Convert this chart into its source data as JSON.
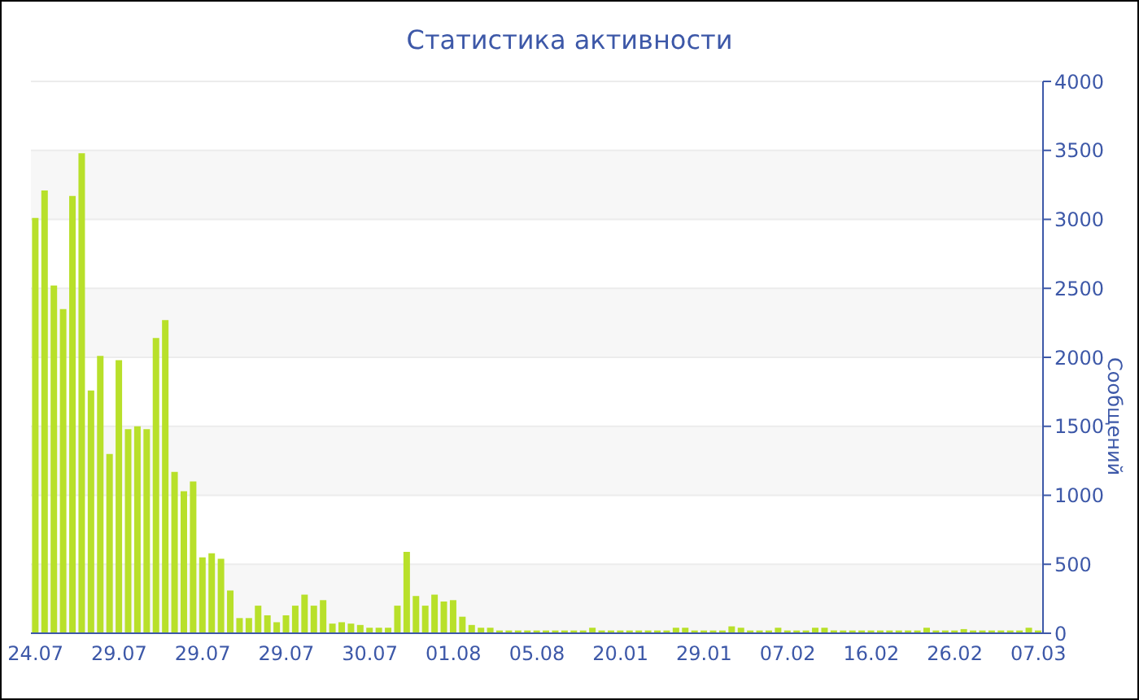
{
  "chart_data": {
    "type": "bar",
    "title": "Статистика активности",
    "ylabel": "Сообщений",
    "categories": [
      "24.07",
      null,
      null,
      null,
      null,
      null,
      null,
      null,
      null,
      "29.07",
      null,
      null,
      null,
      null,
      null,
      null,
      null,
      null,
      "29.07",
      null,
      null,
      null,
      null,
      null,
      null,
      null,
      null,
      "29.07",
      null,
      null,
      null,
      null,
      null,
      null,
      null,
      null,
      "30.07",
      null,
      null,
      null,
      null,
      null,
      null,
      null,
      null,
      "01.08",
      null,
      null,
      null,
      null,
      null,
      null,
      null,
      null,
      "05.08",
      null,
      null,
      null,
      null,
      null,
      null,
      null,
      null,
      "20.01",
      null,
      null,
      null,
      null,
      null,
      null,
      null,
      null,
      "29.01",
      null,
      null,
      null,
      null,
      null,
      null,
      null,
      null,
      "07.02",
      null,
      null,
      null,
      null,
      null,
      null,
      null,
      null,
      "16.02",
      null,
      null,
      null,
      null,
      null,
      null,
      null,
      null,
      "26.02",
      null,
      null,
      null,
      null,
      null,
      null,
      null,
      null,
      "07.03"
    ],
    "values": [
      3010,
      3210,
      2520,
      2350,
      3170,
      3480,
      1760,
      2010,
      1300,
      1980,
      1480,
      1500,
      1480,
      2140,
      2270,
      1170,
      1030,
      1100,
      550,
      580,
      540,
      310,
      110,
      110,
      200,
      130,
      80,
      130,
      200,
      280,
      200,
      240,
      70,
      80,
      70,
      60,
      40,
      40,
      40,
      200,
      590,
      270,
      200,
      280,
      230,
      240,
      120,
      60,
      40,
      40,
      20,
      20,
      20,
      20,
      20,
      20,
      20,
      20,
      20,
      20,
      40,
      20,
      20,
      20,
      20,
      20,
      20,
      20,
      20,
      40,
      40,
      20,
      20,
      20,
      20,
      50,
      40,
      20,
      20,
      20,
      40,
      20,
      20,
      20,
      40,
      40,
      20,
      20,
      20,
      20,
      20,
      20,
      20,
      20,
      20,
      20,
      40,
      20,
      20,
      20,
      30,
      20,
      20,
      20,
      20,
      20,
      20,
      40,
      20
    ],
    "color": "#b8e02a",
    "ylim": [
      0,
      4000
    ],
    "yticks": [
      0,
      500,
      1000,
      1500,
      2000,
      2500,
      3000,
      3500,
      4000
    ],
    "grid": "y"
  }
}
